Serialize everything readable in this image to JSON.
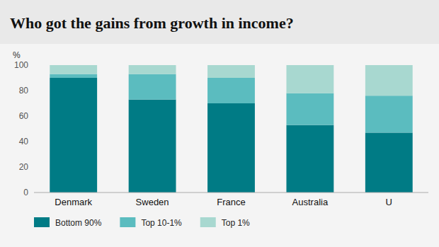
{
  "chart_data": {
    "type": "bar",
    "title": "Who got the gains from growth in income?",
    "ylabel": "%",
    "categories": [
      "Denmark",
      "Sweden",
      "France",
      "Australia",
      "U"
    ],
    "series": [
      {
        "name": "Bottom 90%",
        "color": "#007b85",
        "values": [
          90,
          73,
          70,
          53,
          47
        ]
      },
      {
        "name": "Top 10-1%",
        "color": "#5bbcbf",
        "values": [
          3,
          20,
          20,
          25,
          29
        ]
      },
      {
        "name": "Top 1%",
        "color": "#a8d8d0",
        "values": [
          7,
          7,
          10,
          22,
          24
        ]
      }
    ],
    "stacked": true,
    "ylim": [
      0,
      100
    ],
    "yticks": [
      0,
      20,
      40,
      60,
      80,
      100
    ],
    "grid": false,
    "legend": "bottom"
  }
}
